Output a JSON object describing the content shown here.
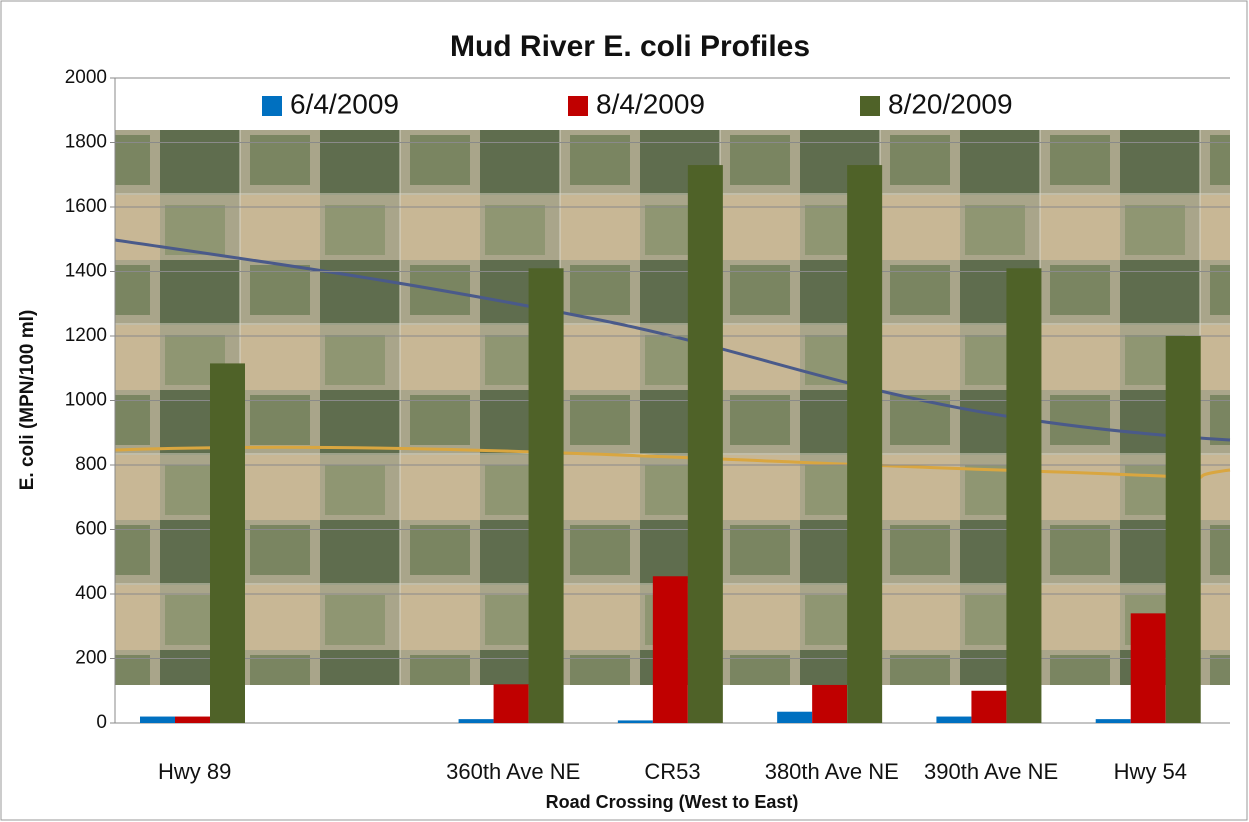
{
  "chart_data": {
    "type": "bar",
    "title": "Mud River E. coli Profiles",
    "y_label": "E. coli (MPN/100 ml)",
    "x_label": "Road Crossing (West to East)",
    "categories": [
      "Hwy 89",
      null,
      "360th Ave NE",
      "CR53",
      "380th Ave NE",
      "390th Ave NE",
      "Hwy 54"
    ],
    "series": [
      {
        "name": "6/4/2009",
        "color": "#0070c0",
        "values": [
          20,
          null,
          12,
          8,
          35,
          20,
          12
        ]
      },
      {
        "name": "8/4/2009",
        "color": "#c00000",
        "values": [
          20,
          null,
          120,
          455,
          118,
          100,
          340
        ]
      },
      {
        "name": "8/20/2009",
        "color": "#4f6228",
        "values": [
          1115,
          null,
          1410,
          1730,
          1730,
          1410,
          1200
        ]
      }
    ],
    "ylim": [
      0,
      2000
    ],
    "yticks": [
      0,
      200,
      400,
      600,
      800,
      1000,
      1200,
      1400,
      1600,
      1800,
      2000
    ],
    "grid": true
  }
}
